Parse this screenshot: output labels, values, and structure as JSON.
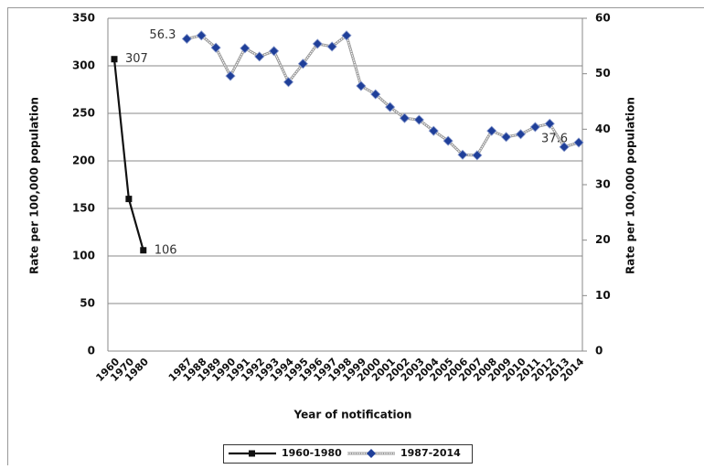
{
  "chart_data": {
    "type": "line",
    "x_label": "Year of notification",
    "y_label": "Rate per 100,000 population",
    "y2_label": "Rate per 100,000 population",
    "categories": [
      "1960",
      "1970",
      "1980",
      null,
      null,
      "1987",
      "1988",
      "1989",
      "1990",
      "1991",
      "1992",
      "1993",
      "1994",
      "1995",
      "1996",
      "1997",
      "1998",
      "1999",
      "2000",
      "2001",
      "2002",
      "2003",
      "2004",
      "2005",
      "2006",
      "2007",
      "2008",
      "2009",
      "2010",
      "2011",
      "2012",
      "2013",
      "2014"
    ],
    "ylim": [
      0,
      350
    ],
    "yticks": [
      0,
      50,
      100,
      150,
      200,
      250,
      300,
      350
    ],
    "y2lim": [
      0,
      60
    ],
    "y2ticks": [
      0,
      10,
      20,
      30,
      40,
      50,
      60
    ],
    "grid": true,
    "legend": "bottom",
    "series": [
      {
        "name": "1960-1980",
        "color": "#111111",
        "marker": "square",
        "values": [
          307,
          160,
          106,
          null,
          null,
          null,
          null,
          null,
          null,
          null,
          null,
          null,
          null,
          null,
          null,
          null,
          null,
          null,
          null,
          null,
          null,
          null,
          null,
          null,
          null,
          null,
          null,
          null,
          null,
          null,
          null,
          null,
          null
        ],
        "value_labels": [
          "307",
          null,
          "106",
          null,
          null,
          null,
          null,
          null,
          null,
          null,
          null,
          null,
          null,
          null,
          null,
          null,
          null,
          null,
          null,
          null,
          null,
          null,
          null,
          null,
          null,
          null,
          null,
          null,
          null,
          null,
          null,
          null,
          null
        ]
      },
      {
        "name": "1987-2014",
        "color": "#1f3f99",
        "marker": "diamond",
        "axis": "y2",
        "values": [
          null,
          null,
          null,
          null,
          null,
          56.3,
          56.9,
          54.7,
          49.6,
          54.6,
          53.1,
          54.1,
          48.5,
          51.8,
          55.4,
          54.9,
          56.9,
          47.8,
          46.3,
          44.0,
          42.0,
          41.7,
          39.7,
          37.9,
          35.4,
          35.3,
          39.7,
          38.6,
          39.1,
          40.4,
          41.0,
          36.8,
          37.6
        ],
        "value_labels": [
          null,
          null,
          null,
          null,
          null,
          "56.3",
          null,
          null,
          null,
          null,
          null,
          null,
          null,
          null,
          null,
          null,
          null,
          null,
          null,
          null,
          null,
          null,
          null,
          null,
          null,
          null,
          null,
          null,
          null,
          null,
          null,
          null,
          "37.6"
        ]
      }
    ]
  }
}
